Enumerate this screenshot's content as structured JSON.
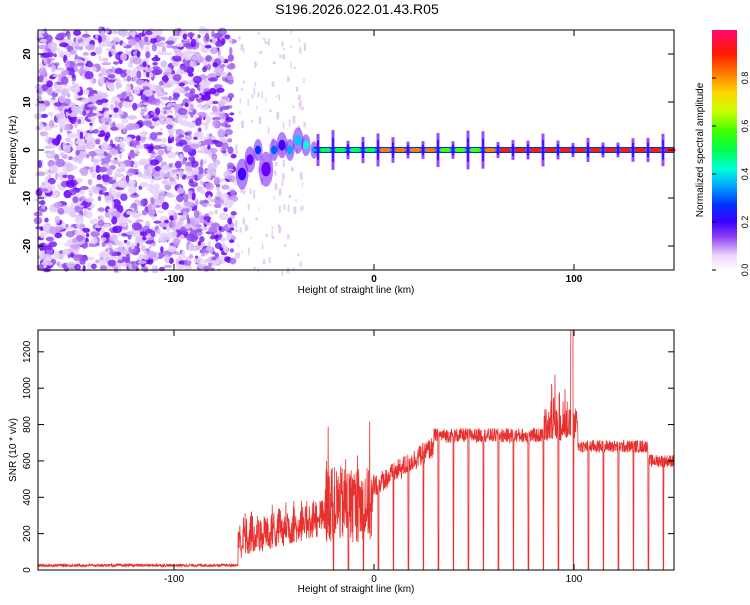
{
  "title": "S196.2026.022.01.43.R05",
  "chart_data": [
    {
      "type": "heatmap",
      "title": "S196.2026.022.01.43.R05",
      "xlabel": "Height of straight line (km)",
      "ylabel": "Frequency (Hz)",
      "xlim": [
        -168,
        150
      ],
      "ylim": [
        -25,
        25
      ],
      "xticks": [
        -100,
        0,
        100
      ],
      "yticks": [
        -20,
        -10,
        0,
        10,
        20
      ],
      "colorbar": {
        "label": "Normalized spectral amplitude",
        "range": [
          0,
          1
        ],
        "ticks": [
          0.0,
          0.2,
          0.4,
          0.6,
          0.8
        ]
      },
      "description_values": {
        "noise_region_x": [
          -168,
          -70
        ],
        "signal_transition_x": [
          -70,
          -30
        ],
        "steady_line_frequency": 0,
        "gap_period_km": 7.5
      }
    },
    {
      "type": "line",
      "xlabel": "Height of straight line (km)",
      "ylabel": "SNR (10 * v/v)",
      "xlim": [
        -168,
        150
      ],
      "ylim": [
        0,
        1320
      ],
      "xticks": [
        -100,
        0,
        100
      ],
      "yticks": [
        0,
        200,
        400,
        600,
        800,
        1000,
        1200
      ],
      "color": "#e8312e",
      "segments": [
        {
          "x_range": [
            -168,
            -68
          ],
          "baseline": 25
        },
        {
          "x_range": [
            -68,
            -25
          ],
          "range": [
            50,
            380
          ]
        },
        {
          "x_range": [
            -25,
            0
          ],
          "range": [
            150,
            820
          ]
        },
        {
          "x_range": [
            0,
            30
          ],
          "rising_from": 460,
          "rising_to": 680
        },
        {
          "x_range": [
            30,
            85
          ],
          "level": 740
        },
        {
          "x_range": [
            85,
            102
          ],
          "level": 800,
          "peak": 1320,
          "peak_x": 99
        },
        {
          "x_range": [
            102,
            150
          ],
          "level": 680
        }
      ]
    }
  ]
}
